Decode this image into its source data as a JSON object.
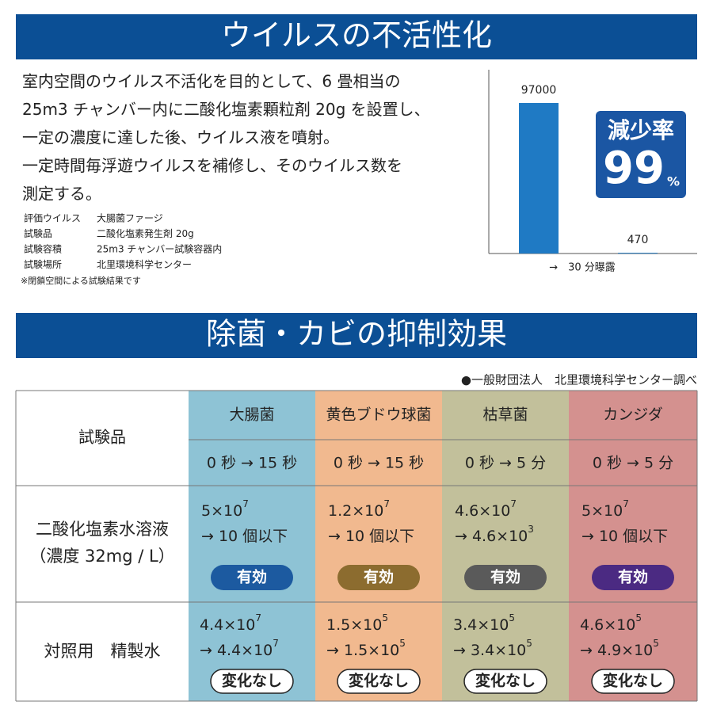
{
  "header1": {
    "title": "ウイルスの不活性化"
  },
  "intro": {
    "lines": [
      "室内空間のウイルス不活化を目的として、6 畳相当の",
      "25m3 チャンバー内に二酸化塩素顆粒剤 20g を設置し、",
      "一定の濃度に達した後、ウイルス液を噴射。",
      "一定時間毎浮遊ウイルスを補修し、そのウイルス数を",
      "測定する。"
    ],
    "info": [
      [
        "評価ウイルス",
        "大腸菌ファージ"
      ],
      [
        "試験品",
        "二酸化塩素発生剤 20g"
      ],
      [
        "試験容積",
        "25m3 チャンバー試験容器内"
      ],
      [
        "試験場所",
        "北里環境科学センター"
      ]
    ],
    "note": "※閉鎖空間による試験結果です"
  },
  "chart_data": {
    "type": "bar",
    "categories": [
      null,
      null
    ],
    "values": [
      97000,
      470
    ],
    "xlabel": "→　30 分曝露",
    "color": "#1f7ac4"
  },
  "badge": {
    "label": "減少率",
    "value": "99",
    "unit": "%"
  },
  "header2": {
    "title": "除菌・カビの抑制効果",
    "source": "●一般財団法人　北里環境科学センター調べ"
  },
  "table": {
    "corner": "試験品",
    "row_labels": [
      [
        "二酸化塩素水溶液",
        "（濃度 32mg / L）"
      ],
      [
        "対照用　精製水"
      ]
    ],
    "columns": [
      {
        "name": "大腸菌",
        "time": "0 秒 → 15 秒",
        "bg": "#8ec3d5",
        "pill": "#1c5aa0",
        "cells": [
          {
            "before": {
              "base": "5×10",
              "exp": "7"
            },
            "after": {
              "base": "→ 10 個以下"
            },
            "verdict": "有効"
          },
          {
            "before": {
              "base": "4.4×10",
              "exp": "7"
            },
            "after": {
              "base": "→ 4.4×10",
              "exp": "7"
            },
            "verdict": "変化なし"
          }
        ]
      },
      {
        "name": "黄色ブドウ球菌",
        "time": "0 秒 → 15 秒",
        "bg": "#f1b98f",
        "pill": "#8c6c2f",
        "cells": [
          {
            "before": {
              "base": "1.2×10",
              "exp": "7"
            },
            "after": {
              "base": "→ 10 個以下"
            },
            "verdict": "有効"
          },
          {
            "before": {
              "base": "1.5×10",
              "exp": "5"
            },
            "after": {
              "base": "→ 1.5×10",
              "exp": "5"
            },
            "verdict": "変化なし"
          }
        ]
      },
      {
        "name": "枯草菌",
        "time": "0 秒 → 5 分",
        "bg": "#c2c09b",
        "pill": "#5a5a5a",
        "cells": [
          {
            "before": {
              "base": "4.6×10",
              "exp": "7"
            },
            "after": {
              "base": "→ 4.6×10",
              "exp": "3"
            },
            "verdict": "有効"
          },
          {
            "before": {
              "base": "3.4×10",
              "exp": "5"
            },
            "after": {
              "base": "→ 3.4×10",
              "exp": "5"
            },
            "verdict": "変化なし"
          }
        ]
      },
      {
        "name": "カンジダ",
        "time": "0 秒 → 5 分",
        "bg": "#d4918f",
        "pill": "#4b2a82",
        "cells": [
          {
            "before": {
              "base": "5×10",
              "exp": "7"
            },
            "after": {
              "base": "→ 10 個以下"
            },
            "verdict": "有効"
          },
          {
            "before": {
              "base": "4.6×10",
              "exp": "5"
            },
            "after": {
              "base": "→ 4.9×10",
              "exp": "5"
            },
            "verdict": "変化なし"
          }
        ]
      }
    ]
  }
}
